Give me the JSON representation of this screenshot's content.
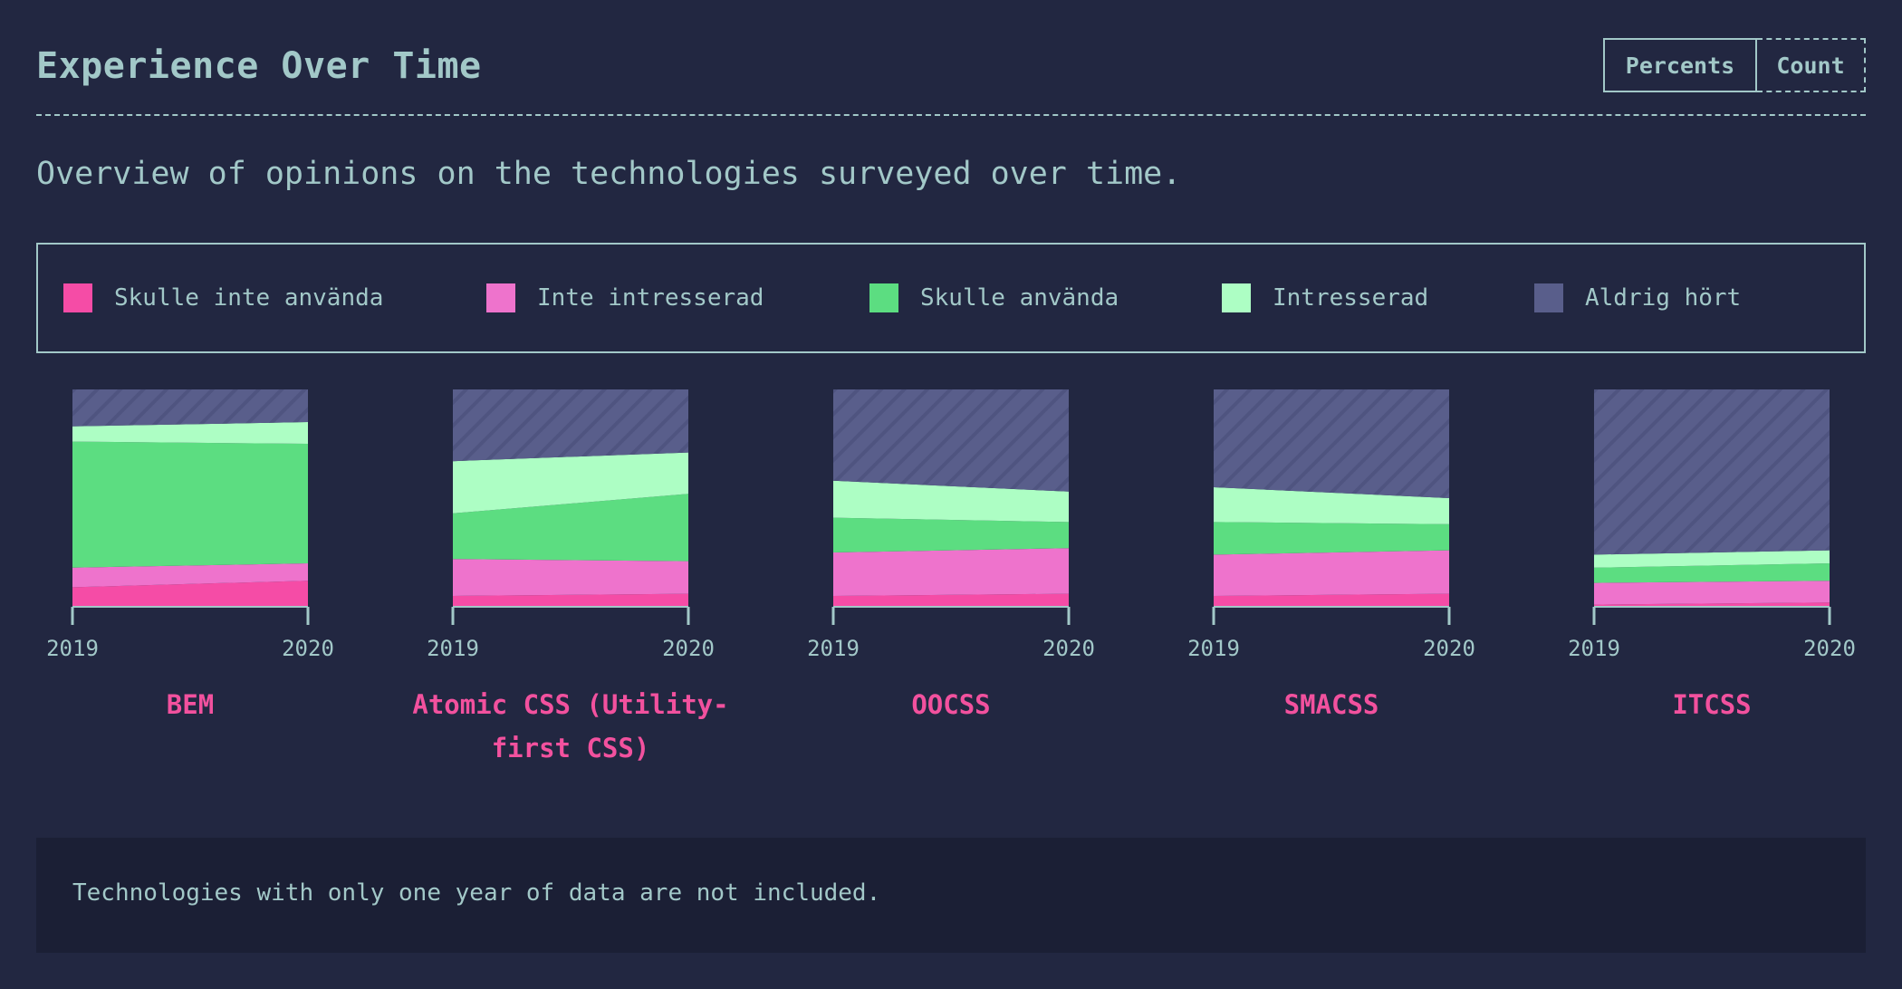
{
  "header": {
    "title": "Experience Over Time",
    "toggle": [
      "Percents",
      "Count"
    ],
    "active_toggle": "Percents"
  },
  "description": "Overview of opinions on the technologies surveyed over time.",
  "legend": [
    {
      "label": "Skulle inte använda",
      "color": "#f54ca6"
    },
    {
      "label": "Inte intresserad",
      "color": "#ee73cc"
    },
    {
      "label": "Skulle använda",
      "color": "#5cdd81"
    },
    {
      "label": "Intresserad",
      "color": "#adfec4"
    },
    {
      "label": "Aldrig hört",
      "color": "#595e8b"
    }
  ],
  "chart_data": [
    {
      "type": "area",
      "title": "BEM",
      "x": [
        "2019",
        "2020"
      ],
      "ylim": [
        0,
        100
      ],
      "series": [
        {
          "name": "Skulle inte använda",
          "values": [
            9,
            12
          ]
        },
        {
          "name": "Inte intresserad",
          "values": [
            9,
            8
          ]
        },
        {
          "name": "Skulle använda",
          "values": [
            58,
            55
          ]
        },
        {
          "name": "Intresserad",
          "values": [
            7,
            10
          ]
        },
        {
          "name": "Aldrig hört",
          "values": [
            17,
            15
          ]
        }
      ]
    },
    {
      "type": "area",
      "title": "Atomic CSS (Utility-first CSS)",
      "x": [
        "2019",
        "2020"
      ],
      "ylim": [
        0,
        100
      ],
      "series": [
        {
          "name": "Skulle inte använda",
          "values": [
            5,
            6
          ]
        },
        {
          "name": "Inte intresserad",
          "values": [
            17,
            15
          ]
        },
        {
          "name": "Skulle använda",
          "values": [
            21,
            31
          ]
        },
        {
          "name": "Intresserad",
          "values": [
            24,
            19
          ]
        },
        {
          "name": "Aldrig hört",
          "values": [
            33,
            29
          ]
        }
      ]
    },
    {
      "type": "area",
      "title": "OOCSS",
      "x": [
        "2019",
        "2020"
      ],
      "ylim": [
        0,
        100
      ],
      "series": [
        {
          "name": "Skulle inte använda",
          "values": [
            5,
            6
          ]
        },
        {
          "name": "Inte intresserad",
          "values": [
            20,
            21
          ]
        },
        {
          "name": "Skulle använda",
          "values": [
            16,
            12
          ]
        },
        {
          "name": "Intresserad",
          "values": [
            17,
            14
          ]
        },
        {
          "name": "Aldrig hört",
          "values": [
            42,
            47
          ]
        }
      ]
    },
    {
      "type": "area",
      "title": "SMACSS",
      "x": [
        "2019",
        "2020"
      ],
      "ylim": [
        0,
        100
      ],
      "series": [
        {
          "name": "Skulle inte använda",
          "values": [
            5,
            6
          ]
        },
        {
          "name": "Inte intresserad",
          "values": [
            19,
            20
          ]
        },
        {
          "name": "Skulle använda",
          "values": [
            15,
            12
          ]
        },
        {
          "name": "Intresserad",
          "values": [
            16,
            12
          ]
        },
        {
          "name": "Aldrig hört",
          "values": [
            45,
            50
          ]
        }
      ]
    },
    {
      "type": "area",
      "title": "ITCSS",
      "x": [
        "2019",
        "2020"
      ],
      "ylim": [
        0,
        100
      ],
      "series": [
        {
          "name": "Skulle inte använda",
          "values": [
            1,
            2
          ]
        },
        {
          "name": "Inte intresserad",
          "values": [
            10,
            10
          ]
        },
        {
          "name": "Skulle använda",
          "values": [
            7,
            8
          ]
        },
        {
          "name": "Intresserad",
          "values": [
            6,
            6
          ]
        },
        {
          "name": "Aldrig hört",
          "values": [
            76,
            74
          ]
        }
      ]
    }
  ],
  "note": "Technologies with only one year of data are not included."
}
